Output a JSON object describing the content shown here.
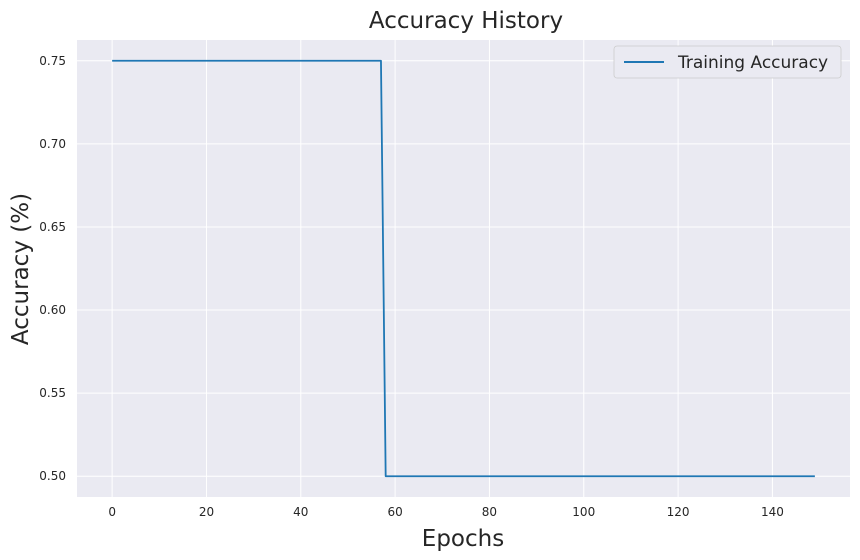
{
  "chart_data": {
    "type": "line",
    "title": "Accuracy History",
    "xlabel": "Epochs",
    "ylabel": "Accuracy (%)",
    "xlim": [
      -7.45,
      156.45
    ],
    "ylim": [
      0.4875,
      0.7625
    ],
    "xticks": [
      0,
      20,
      40,
      60,
      80,
      100,
      120,
      140
    ],
    "xtick_labels": [
      "0",
      "20",
      "40",
      "60",
      "80",
      "100",
      "120",
      "140"
    ],
    "yticks": [
      0.5,
      0.55,
      0.6,
      0.65,
      0.7,
      0.75
    ],
    "ytick_labels": [
      "0.50",
      "0.55",
      "0.60",
      "0.65",
      "0.70",
      "0.75"
    ],
    "grid": true,
    "legend_position": "top-right",
    "colors": {
      "background": "#eaeaf2",
      "grid": "#ffffff",
      "series": "#1f77b4"
    },
    "series": [
      {
        "name": "Training Accuracy",
        "x": [
          0,
          57,
          58,
          149
        ],
        "y": [
          0.75,
          0.75,
          0.5,
          0.5
        ]
      }
    ]
  }
}
